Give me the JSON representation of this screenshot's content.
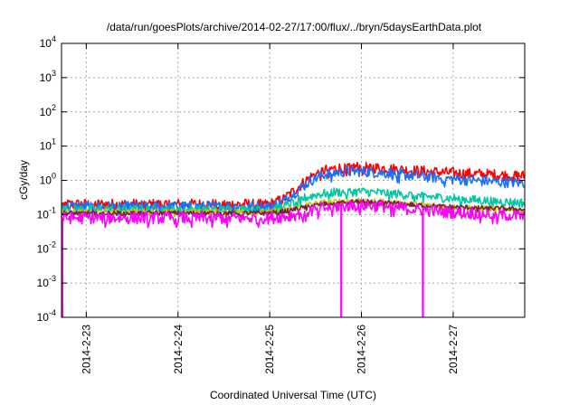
{
  "chart_data": {
    "type": "line",
    "title": "/data/run/goesPlots/archive/2014-02-27/17:00/flux/../bryn/5daysEarthData.plot",
    "xlabel": "Coordinated Universal Time (UTC)",
    "ylabel": "cGy/day",
    "yscale": "log",
    "xlim": [
      -0.27,
      4.78
    ],
    "ylim": [
      0.0001,
      10000
    ],
    "x_ticks": [
      {
        "label": "2014-2-23",
        "value": 0
      },
      {
        "label": "2014-2-24",
        "value": 1
      },
      {
        "label": "2014-2-25",
        "value": 2
      },
      {
        "label": "2014-2-26",
        "value": 3
      },
      {
        "label": "2014-2-27",
        "value": 4
      }
    ],
    "y_ticks": [
      {
        "base": "10",
        "exp": "-4",
        "value": 0.0001
      },
      {
        "base": "10",
        "exp": "-3",
        "value": 0.001
      },
      {
        "base": "10",
        "exp": "-2",
        "value": 0.01
      },
      {
        "base": "10",
        "exp": "-1",
        "value": 0.1
      },
      {
        "base": "10",
        "exp": "0",
        "value": 1
      },
      {
        "base": "10",
        "exp": "1",
        "value": 10
      },
      {
        "base": "10",
        "exp": "2",
        "value": 100
      },
      {
        "base": "10",
        "exp": "3",
        "value": 1000
      },
      {
        "base": "10",
        "exp": "4",
        "value": 10000
      }
    ],
    "grid": true,
    "series": [
      {
        "color": "#ff0000",
        "noise": 0.18,
        "x": [
          -0.27,
          2.0,
          2.15,
          2.3,
          2.45,
          2.6,
          2.8,
          3.0,
          3.3,
          3.6,
          3.9,
          4.2,
          4.5,
          4.78
        ],
        "y": [
          0.2,
          0.2,
          0.28,
          0.6,
          1.3,
          2.0,
          2.4,
          2.5,
          2.2,
          1.9,
          1.7,
          1.55,
          1.45,
          1.35
        ]
      },
      {
        "color": "#1a6fff",
        "noise": 0.18,
        "x": [
          -0.27,
          2.0,
          2.15,
          2.3,
          2.45,
          2.6,
          2.8,
          3.0,
          3.3,
          3.6,
          3.9,
          4.2,
          4.5,
          4.78
        ],
        "y": [
          0.17,
          0.17,
          0.24,
          0.5,
          1.0,
          1.5,
          1.8,
          1.85,
          1.6,
          1.35,
          1.15,
          1.0,
          0.9,
          0.85
        ]
      },
      {
        "color": "#00c8a0",
        "noise": 0.15,
        "x": [
          -0.27,
          2.0,
          2.15,
          2.3,
          2.5,
          2.7,
          3.0,
          3.3,
          3.6,
          3.9,
          4.2,
          4.5,
          4.78
        ],
        "y": [
          0.14,
          0.14,
          0.17,
          0.26,
          0.38,
          0.45,
          0.47,
          0.42,
          0.36,
          0.31,
          0.27,
          0.24,
          0.22
        ]
      },
      {
        "color": "#c8c800",
        "noise": 0.1,
        "x": [
          -0.27,
          2.0,
          2.2,
          2.45,
          2.7,
          3.0,
          3.3,
          3.6,
          3.9,
          4.2,
          4.5,
          4.78
        ],
        "y": [
          0.12,
          0.12,
          0.14,
          0.2,
          0.24,
          0.26,
          0.23,
          0.2,
          0.17,
          0.16,
          0.15,
          0.14
        ]
      },
      {
        "color": "#7a1f3a",
        "noise": 0.08,
        "x": [
          -0.27,
          2.0,
          2.2,
          2.45,
          2.7,
          3.0,
          3.3,
          3.6,
          3.9,
          4.2,
          4.5,
          4.78
        ],
        "y": [
          0.11,
          0.11,
          0.13,
          0.18,
          0.22,
          0.24,
          0.22,
          0.19,
          0.17,
          0.16,
          0.15,
          0.14
        ]
      },
      {
        "color": "#ff00ff",
        "noise": 0.2,
        "x": [
          -0.27,
          2.0,
          2.2,
          2.45,
          2.7,
          3.0,
          3.3,
          3.6,
          3.9,
          4.2,
          4.5,
          4.78
        ],
        "y": [
          0.08,
          0.08,
          0.09,
          0.13,
          0.17,
          0.19,
          0.17,
          0.14,
          0.12,
          0.11,
          0.1,
          0.09
        ],
        "dropouts": [
          -0.27,
          2.78,
          3.67
        ]
      }
    ]
  }
}
